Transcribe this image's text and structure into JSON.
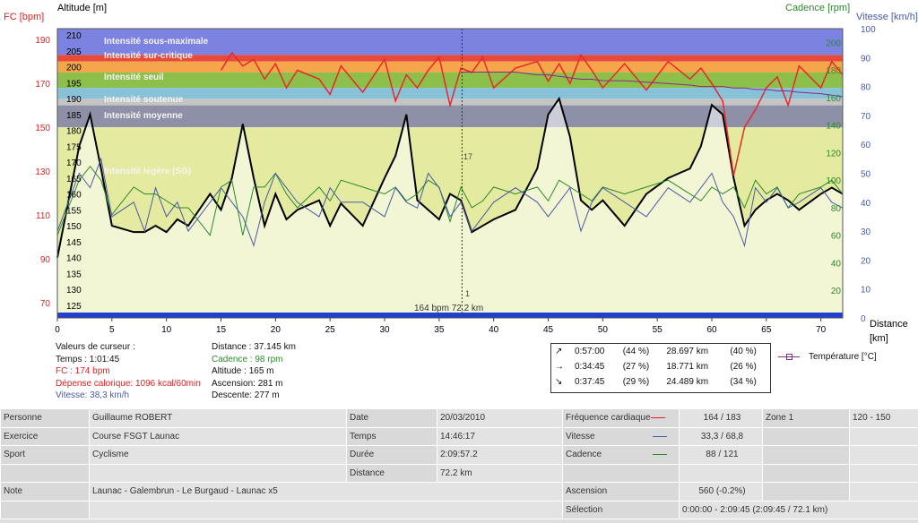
{
  "axes": {
    "fc_title": "FC [bpm]",
    "alt_title": "Altitude  [m]",
    "cad_title": "Cadence [rpm]",
    "vit_title": "Vitesse [km/h]",
    "dist_title": "Distance",
    "dist_unit": "[km]",
    "fc_ticks": [
      "190",
      "170",
      "150",
      "130",
      "110",
      "90",
      "70"
    ],
    "alt_ticks": [
      "210",
      "205",
      "200",
      "195",
      "190",
      "185",
      "180",
      "175",
      "170",
      "165",
      "160",
      "155",
      "150",
      "145",
      "140",
      "135",
      "130",
      "125"
    ],
    "cad_ticks": [
      "200",
      "180",
      "160",
      "140",
      "120",
      "100",
      "80",
      "60",
      "40",
      "20"
    ],
    "vit_ticks": [
      "100",
      "90",
      "80",
      "70",
      "60",
      "50",
      "40",
      "30",
      "20",
      "10",
      "0"
    ],
    "dist_ticks": [
      "0",
      "5",
      "10",
      "15",
      "20",
      "25",
      "30",
      "35",
      "40",
      "45",
      "50",
      "55",
      "60",
      "65",
      "70"
    ]
  },
  "zones": [
    {
      "label": "Intensité sous-maximale",
      "color": "#e84a3a"
    },
    {
      "label": "Intensité sur-critique",
      "color": "#f5a64a"
    },
    {
      "label": "Intensité seuil",
      "color": "#8cc04a"
    },
    {
      "label": "Intensité soutenue",
      "color": "#87c2d8"
    },
    {
      "label": "Intensité moyenne",
      "color": "#c4c4c4"
    },
    {
      "label": "Intensité légère (SG)",
      "color": "#8e90a8"
    },
    {
      "label": "",
      "color": "#e4eaa0"
    }
  ],
  "cursor_markers": {
    "top": "17",
    "bottom": "1",
    "readout": "164 bpm 72.2 km"
  },
  "cursor_values": {
    "title": "Valeurs de curseur :",
    "temps": "Temps : 1:01:45",
    "fc": "FC : 174 bpm",
    "depense": "Dépense calorique: 1096 kcal/60min",
    "vitesse": "Vitesse: 38,3 km/h",
    "distance": "Distance : 37.145 km",
    "cadence": "Cadence : 98 rpm",
    "altitude": "Altitude : 165 m",
    "ascension": "Ascension: 281 m",
    "descente": "Descente: 277 m"
  },
  "stats": [
    {
      "arrow": "↗",
      "time": "0:57:00",
      "pct": "(44 %)",
      "dist": "28.697 km",
      "dpct": "(40 %)"
    },
    {
      "arrow": "→",
      "time": "0:34:45",
      "pct": "(27 %)",
      "dist": "18.771 km",
      "dpct": "(26 %)"
    },
    {
      "arrow": "↘",
      "time": "0:37:45",
      "pct": "(29 %)",
      "dist": "24.489 km",
      "dpct": "(34 %)"
    }
  ],
  "legend": {
    "temperature": "Température [°C]"
  },
  "info": {
    "personne_l": "Personne",
    "personne_v": "Guillaume ROBERT",
    "date_l": "Date",
    "date_v": "20/03/2010",
    "fc_l": "Fréquence cardiaque",
    "fc_v": "164 / 183",
    "zone_l": "Zone 1",
    "zone_v": "120 - 150",
    "exercice_l": "Exercice",
    "exercice_v": "Course FSGT Launac",
    "temps_l": "Temps",
    "temps_v": "14:46:17",
    "vitesse_l": "Vitesse",
    "vitesse_v": "33,3 / 68,8",
    "sport_l": "Sport",
    "sport_v": "Cyclisme",
    "duree_l": "Durée",
    "duree_v": "2:09:57.2",
    "cadence_l": "Cadence",
    "cadence_v": "88 / 121",
    "distance_l": "Distance",
    "distance_v": "72.2 km",
    "note_l": "Note",
    "note_v": "Launac - Galembrun - Le Burgaud - Launac x5",
    "ascension_l": "Ascension",
    "ascension_v": "560 (-0.2%)",
    "selection_l": "Sélection",
    "selection_v": "0:00:00 - 2:09:45 (2:09:45 / 72.1 km)"
  },
  "chart_data": {
    "type": "line",
    "xlabel": "Distance",
    "x_unit": "[km]",
    "xlim": [
      0,
      72
    ],
    "x": [
      0,
      2,
      3,
      4,
      5,
      7,
      8,
      9,
      10,
      11,
      12,
      14,
      15,
      16,
      17,
      18,
      19,
      20,
      21,
      22,
      24,
      25,
      26,
      28,
      30,
      31,
      32,
      33,
      34,
      35,
      36,
      37,
      38,
      39,
      40,
      42,
      44,
      45,
      46,
      47,
      48,
      49,
      50,
      52,
      54,
      56,
      58,
      59,
      60,
      61,
      62,
      63,
      64,
      65,
      66,
      67,
      68,
      70,
      71,
      72
    ],
    "series": [
      {
        "name": "FC",
        "unit": "bpm",
        "ylim": [
          63,
          195
        ],
        "values": [
          null,
          null,
          null,
          null,
          null,
          null,
          null,
          null,
          null,
          null,
          null,
          null,
          176,
          184,
          178,
          181,
          172,
          179,
          168,
          176,
          172,
          165,
          178,
          166,
          181,
          162,
          174,
          168,
          176,
          182,
          160,
          177,
          175,
          182,
          168,
          177,
          180,
          171,
          179,
          170,
          183,
          176,
          168,
          179,
          167,
          180,
          172,
          177,
          170,
          162,
          128,
          150,
          158,
          168,
          173,
          160,
          178,
          168,
          180,
          174
        ]
      },
      {
        "name": "Altitude",
        "unit": "m",
        "ylim": [
          121,
          212
        ],
        "values": [
          140,
          175,
          185,
          168,
          150,
          148,
          148,
          150,
          148,
          152,
          150,
          160,
          155,
          165,
          182,
          165,
          150,
          160,
          152,
          155,
          158,
          150,
          157,
          150,
          165,
          172,
          185,
          158,
          155,
          152,
          160,
          158,
          148,
          150,
          152,
          155,
          168,
          185,
          190,
          178,
          158,
          155,
          158,
          150,
          160,
          165,
          168,
          175,
          188,
          185,
          165,
          150,
          155,
          158,
          160,
          158,
          155,
          160,
          162,
          160
        ]
      },
      {
        "name": "Cadence",
        "unit": "rpm",
        "values": [
          60,
          100,
          110,
          100,
          75,
          95,
          90,
          90,
          85,
          80,
          80,
          60,
          95,
          100,
          60,
          95,
          95,
          105,
          90,
          80,
          95,
          85,
          100,
          95,
          90,
          95,
          85,
          90,
          100,
          95,
          70,
          95,
          80,
          85,
          95,
          90,
          95,
          85,
          100,
          95,
          90,
          85,
          95,
          90,
          95,
          100,
          90,
          85,
          95,
          90,
          95,
          80,
          100,
          90,
          95,
          80,
          90,
          95,
          100,
          90
        ]
      },
      {
        "name": "Vitesse",
        "unit": "km/h",
        "ylim": [
          0,
          100
        ],
        "values": [
          30,
          50,
          45,
          55,
          35,
          40,
          30,
          45,
          35,
          40,
          30,
          40,
          45,
          40,
          35,
          25,
          40,
          50,
          45,
          40,
          35,
          45,
          40,
          40,
          35,
          45,
          40,
          38,
          50,
          45,
          35,
          40,
          30,
          35,
          40,
          45,
          40,
          35,
          40,
          45,
          30,
          40,
          45,
          40,
          35,
          45,
          40,
          45,
          50,
          40,
          35,
          25,
          45,
          40,
          45,
          38,
          40,
          45,
          40,
          38
        ]
      },
      {
        "name": "Température",
        "unit": "°C",
        "ylim": [
          0,
          20
        ],
        "values": [
          null,
          null,
          null,
          null,
          null,
          null,
          null,
          null,
          null,
          null,
          null,
          null,
          null,
          null,
          null,
          null,
          null,
          null,
          null,
          null,
          null,
          null,
          null,
          null,
          null,
          null,
          null,
          null,
          null,
          null,
          null,
          17,
          17,
          17,
          17,
          17,
          16.8,
          16.8,
          16.7,
          16.6,
          16.5,
          16.5,
          16.4,
          16.4,
          16.3,
          16.2,
          16.1,
          16,
          16,
          16,
          15.9,
          15.9,
          15.8,
          15.8,
          15.7,
          15.7,
          15.6,
          15.5,
          15.4,
          15.3
        ]
      }
    ],
    "zone_hr_bounds": [
      183,
      180,
      175,
      168,
      163,
      160,
      150,
      120
    ]
  }
}
